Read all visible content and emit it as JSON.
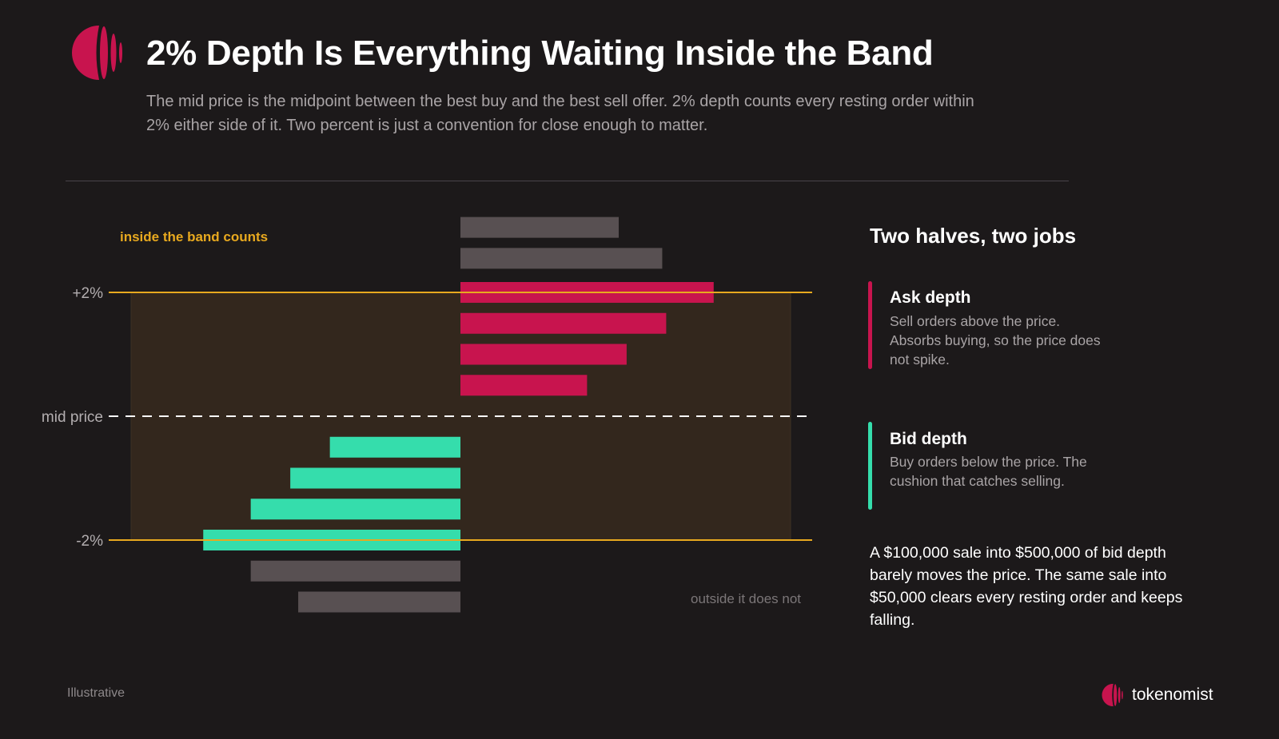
{
  "header": {
    "title": "2% Depth Is Everything Waiting Inside the Band",
    "subtitle": "The mid price is the midpoint between the best buy and the best sell offer. 2% depth counts every resting order within 2% either side of it. Two percent is just a convention for close enough to matter."
  },
  "chart_data": {
    "type": "bar",
    "orientation": "horizontal",
    "band_label": "inside the band counts",
    "outside_label": "outside it does not",
    "y_tick_labels": [
      "+2%",
      "mid price",
      "-2%"
    ],
    "band_pct": 2,
    "colors": {
      "ask": "#c8144e",
      "bid": "#35ddac",
      "outside": "#585052",
      "band": "#e8a91f",
      "band_fill": "#33271d"
    },
    "ask_levels": [
      {
        "offset_pct": 3.05,
        "size": 4.0,
        "in_band": false
      },
      {
        "offset_pct": 2.55,
        "size": 5.1,
        "in_band": false
      },
      {
        "offset_pct": 2.0,
        "size": 6.4,
        "in_band": true
      },
      {
        "offset_pct": 1.5,
        "size": 5.2,
        "in_band": true
      },
      {
        "offset_pct": 1.0,
        "size": 4.2,
        "in_band": true
      },
      {
        "offset_pct": 0.5,
        "size": 3.2,
        "in_band": true
      }
    ],
    "bid_levels": [
      {
        "offset_pct": -0.5,
        "size": 3.3,
        "in_band": true
      },
      {
        "offset_pct": -1.0,
        "size": 4.3,
        "in_band": true
      },
      {
        "offset_pct": -1.5,
        "size": 5.3,
        "in_band": true
      },
      {
        "offset_pct": -2.0,
        "size": 6.5,
        "in_band": true
      },
      {
        "offset_pct": -2.5,
        "size": 5.3,
        "in_band": false
      },
      {
        "offset_pct": -3.0,
        "size": 4.1,
        "in_band": false
      }
    ]
  },
  "panel": {
    "title": "Two halves, two jobs",
    "ask": {
      "heading": "Ask depth",
      "description": "Sell orders above the price. Absorbs buying, so the price does not spike.",
      "color": "#c8144e"
    },
    "bid": {
      "heading": "Bid depth",
      "description": "Buy orders below the price. The cushion that catches selling.",
      "color": "#35ddac"
    },
    "example": "A $100,000 sale into $500,000 of bid depth barely moves the price. The same sale into $50,000 clears every resting order and keeps falling."
  },
  "footer": {
    "note": "Illustrative",
    "brand": "tokenomist",
    "brand_icon": "tokenomist-logo-icon",
    "brand_color": "#c8144e"
  }
}
